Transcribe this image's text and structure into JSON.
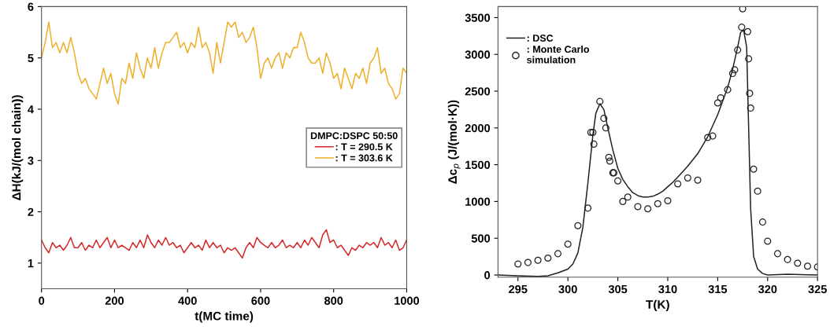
{
  "chart_data": [
    {
      "type": "line",
      "xlabel": "t(MC time)",
      "ylabel": "ΔH(kJ/(mol chain))",
      "legend_title": "DMPC:DSPC 50:50",
      "legend": "right",
      "grid": false,
      "xlim": [
        0,
        1000
      ],
      "ylim": [
        0.5,
        6
      ],
      "xticks": [
        0,
        200,
        400,
        600,
        800,
        1000
      ],
      "yticks": [
        1,
        2,
        3,
        4,
        5,
        6
      ],
      "x": [
        0,
        10,
        20,
        30,
        40,
        50,
        60,
        70,
        80,
        90,
        100,
        110,
        120,
        130,
        140,
        150,
        160,
        170,
        180,
        190,
        200,
        210,
        220,
        230,
        240,
        250,
        260,
        270,
        280,
        290,
        300,
        310,
        320,
        330,
        340,
        350,
        360,
        370,
        380,
        390,
        400,
        410,
        420,
        430,
        440,
        450,
        460,
        470,
        480,
        490,
        500,
        510,
        520,
        530,
        540,
        550,
        560,
        570,
        580,
        590,
        600,
        610,
        620,
        630,
        640,
        650,
        660,
        670,
        680,
        690,
        700,
        710,
        720,
        730,
        740,
        750,
        760,
        770,
        780,
        790,
        800,
        810,
        820,
        830,
        840,
        850,
        860,
        870,
        880,
        890,
        900,
        910,
        920,
        930,
        940,
        950,
        960,
        970,
        980,
        990,
        1000
      ],
      "series": [
        {
          "name": ": T = 290.5 K",
          "color": "#d42a2a",
          "values": [
            1.45,
            1.3,
            1.2,
            1.4,
            1.3,
            1.35,
            1.25,
            1.35,
            1.5,
            1.3,
            1.3,
            1.4,
            1.25,
            1.35,
            1.3,
            1.45,
            1.3,
            1.4,
            1.5,
            1.3,
            1.45,
            1.3,
            1.35,
            1.3,
            1.25,
            1.4,
            1.3,
            1.45,
            1.3,
            1.55,
            1.4,
            1.3,
            1.45,
            1.35,
            1.5,
            1.35,
            1.4,
            1.3,
            1.35,
            1.2,
            1.3,
            1.4,
            1.3,
            1.35,
            1.25,
            1.45,
            1.3,
            1.4,
            1.3,
            1.35,
            1.2,
            1.3,
            1.25,
            1.3,
            1.2,
            1.1,
            1.3,
            1.4,
            1.3,
            1.5,
            1.4,
            1.35,
            1.3,
            1.4,
            1.3,
            1.35,
            1.45,
            1.3,
            1.35,
            1.3,
            1.4,
            1.3,
            1.45,
            1.35,
            1.5,
            1.4,
            1.3,
            1.55,
            1.65,
            1.4,
            1.45,
            1.3,
            1.35,
            1.25,
            1.15,
            1.3,
            1.25,
            1.35,
            1.3,
            1.4,
            1.35,
            1.4,
            1.3,
            1.5,
            1.35,
            1.4,
            1.3,
            1.45,
            1.25,
            1.3,
            1.45
          ]
        },
        {
          "name": ": T = 303.6 K",
          "color": "#eeb02a",
          "values": [
            5.0,
            5.3,
            5.7,
            5.2,
            5.3,
            5.1,
            5.3,
            5.1,
            5.4,
            5.1,
            4.7,
            4.5,
            4.6,
            4.4,
            4.3,
            4.2,
            4.5,
            4.8,
            4.5,
            4.7,
            4.3,
            4.1,
            4.6,
            4.5,
            4.9,
            4.6,
            5.1,
            4.8,
            4.6,
            5.0,
            4.8,
            5.2,
            4.8,
            5.1,
            5.3,
            5.3,
            5.4,
            5.5,
            5.2,
            5.3,
            5.1,
            5.3,
            5.2,
            5.6,
            5.2,
            5.3,
            5.1,
            4.7,
            5.3,
            4.9,
            5.3,
            5.7,
            5.6,
            5.7,
            5.4,
            5.5,
            5.3,
            5.4,
            5.6,
            5.2,
            4.6,
            4.9,
            5.0,
            4.8,
            5.0,
            5.1,
            4.8,
            5.1,
            5.0,
            5.2,
            5.2,
            5.5,
            5.3,
            5.0,
            4.9,
            4.9,
            5.0,
            4.7,
            5.1,
            4.9,
            4.6,
            4.7,
            4.4,
            4.8,
            4.6,
            4.4,
            4.7,
            4.6,
            4.8,
            4.5,
            4.9,
            5.0,
            5.2,
            4.7,
            4.8,
            4.5,
            4.4,
            4.2,
            4.3,
            4.8,
            4.7
          ]
        }
      ]
    },
    {
      "type": "line",
      "xlabel": "T(K)",
      "ylabel": "Δc$_{p}$ (J/(mol·K))",
      "legend": "top left",
      "grid": false,
      "xlim": [
        293,
        325
      ],
      "ylim": [
        -30,
        3650
      ],
      "xticks": [
        295,
        300,
        305,
        310,
        315,
        320,
        325
      ],
      "yticks": [
        0,
        500,
        1000,
        1500,
        2000,
        2500,
        3000,
        3500
      ],
      "series": [
        {
          "name": ": DSC",
          "type": "line",
          "color": "#222222",
          "marker": "none",
          "x": [
            293,
            295,
            297,
            298,
            299,
            300,
            300.5,
            301,
            301.5,
            302,
            302.5,
            302.8,
            303.2,
            303.6,
            304,
            304.5,
            305,
            305.5,
            306,
            306.5,
            307,
            307.5,
            308,
            308.5,
            309,
            309.5,
            310,
            310.5,
            311,
            312,
            313,
            314,
            315,
            316,
            316.5,
            317,
            317.3,
            317.6,
            317.9,
            318.1,
            318.3,
            318.6,
            319,
            319.5,
            320,
            322,
            325
          ],
          "values": [
            0,
            -10,
            -20,
            -10,
            30,
            80,
            150,
            300,
            650,
            1250,
            1900,
            2200,
            2330,
            2250,
            2000,
            1700,
            1450,
            1300,
            1200,
            1120,
            1080,
            1060,
            1060,
            1070,
            1100,
            1140,
            1200,
            1260,
            1330,
            1480,
            1650,
            1880,
            2180,
            2550,
            2800,
            3100,
            3300,
            3330,
            3100,
            2000,
            900,
            250,
            80,
            20,
            0,
            10,
            0
          ]
        },
        {
          "name": ": Monte Carlo\nsimulation",
          "type": "scatter",
          "color": "#222222",
          "marker": "circle",
          "x": [
            295,
            296,
            297,
            298,
            299,
            300,
            301,
            302,
            302.3,
            302.5,
            302.6,
            303.2,
            303.6,
            303.8,
            304.1,
            304.2,
            304.5,
            304.6,
            305,
            305.5,
            306,
            307,
            308,
            309,
            310,
            311,
            312,
            313,
            314,
            314.5,
            315,
            315.3,
            316,
            316.5,
            316.7,
            317,
            317.4,
            317.5,
            318,
            318.1,
            318.2,
            318.3,
            318.6,
            319,
            319.5,
            320,
            321,
            322,
            323,
            324,
            325
          ],
          "values": [
            150,
            170,
            200,
            230,
            290,
            420,
            670,
            910,
            1940,
            1940,
            1780,
            2360,
            2130,
            2000,
            1600,
            1550,
            1390,
            1390,
            1280,
            1000,
            1060,
            930,
            900,
            970,
            1010,
            1240,
            1320,
            1290,
            1870,
            1890,
            2340,
            2410,
            2520,
            2740,
            2790,
            3060,
            3370,
            3620,
            3310,
            2940,
            2470,
            2270,
            1440,
            1140,
            720,
            460,
            290,
            210,
            160,
            120,
            110
          ]
        }
      ]
    }
  ]
}
